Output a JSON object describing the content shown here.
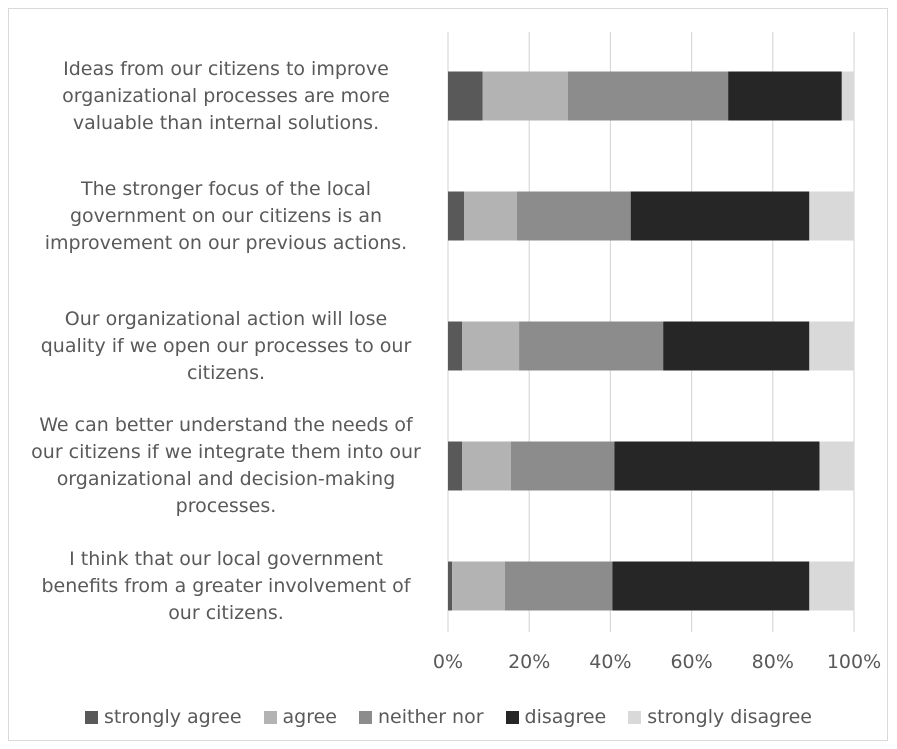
{
  "chart_data": {
    "type": "bar",
    "orientation": "horizontal",
    "stacked": "percent",
    "categories": [
      "Ideas from our citizens to improve organizational processes are more valuable than internal solutions.",
      "The stronger focus of the local government on our citizens is an improvement on our previous actions.",
      "Our organizational action will lose quality if we open our processes to our citizens.",
      "We can better understand the needs of our citizens if we integrate them into our organizational and decision-making processes.",
      "I think that our local government benefits from a greater involvement of our citizens."
    ],
    "category_lines": [
      [
        "Ideas from our citizens to improve",
        "organizational processes are more",
        "valuable than internal solutions."
      ],
      [
        "The stronger focus of the local",
        "government on our citizens is an",
        "improvement on our previous actions."
      ],
      [
        "Our organizational action will lose",
        "quality if we open our processes to our",
        "citizens."
      ],
      [
        "We can better understand the needs of",
        "our citizens if we integrate them into our",
        "organizational and decision-making",
        "processes."
      ],
      [
        "I think that our local government",
        "benefits from a greater involvement of",
        "our citizens."
      ]
    ],
    "series": [
      {
        "name": "strongly agree",
        "color": "#595959",
        "values": [
          8.5,
          4,
          3.5,
          3.5,
          1
        ]
      },
      {
        "name": "agree",
        "color": "#b3b3b3",
        "values": [
          21,
          13,
          14,
          12,
          13
        ]
      },
      {
        "name": "neither nor",
        "color": "#8c8c8c",
        "values": [
          39.5,
          28,
          35.5,
          25.5,
          26.5
        ]
      },
      {
        "name": "disagree",
        "color": "#262626",
        "values": [
          28,
          44,
          36,
          50.5,
          48.5
        ]
      },
      {
        "name": "strongly disagree",
        "color": "#d9d9d9",
        "values": [
          3,
          11,
          11,
          8.5,
          11
        ]
      }
    ],
    "x_ticks": [
      "0%",
      "20%",
      "40%",
      "60%",
      "80%",
      "100%"
    ],
    "xlim": [
      0,
      100
    ],
    "grid": true,
    "legend_position": "bottom"
  }
}
